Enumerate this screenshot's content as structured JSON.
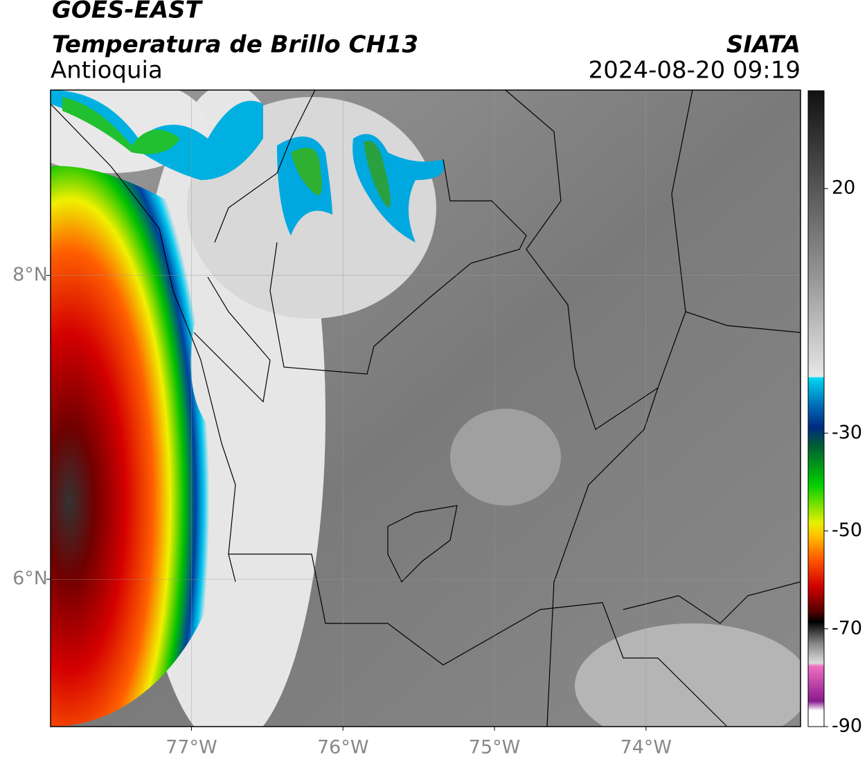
{
  "header": {
    "title": "GOES-EAST",
    "subtitle": "Temperatura de Brillo CH13",
    "region": "Antioquia",
    "source": "SIATA",
    "datetime": "2024-08-20 09:19"
  },
  "map": {
    "xlim": [
      -77.93,
      -72.98
    ],
    "ylim": [
      5.03,
      9.22
    ],
    "xticks": [
      {
        "value": -77,
        "label": "77°W"
      },
      {
        "value": -76,
        "label": "76°W"
      },
      {
        "value": -75,
        "label": "75°W"
      },
      {
        "value": -74,
        "label": "74°W"
      }
    ],
    "yticks": [
      {
        "value": 8,
        "label": "8°N"
      },
      {
        "value": 6,
        "label": "6°N"
      }
    ],
    "grid": true
  },
  "colorbar": {
    "lim": [
      -90,
      40
    ],
    "ticks": [
      20,
      -30,
      -50,
      -70,
      -90
    ]
  }
}
